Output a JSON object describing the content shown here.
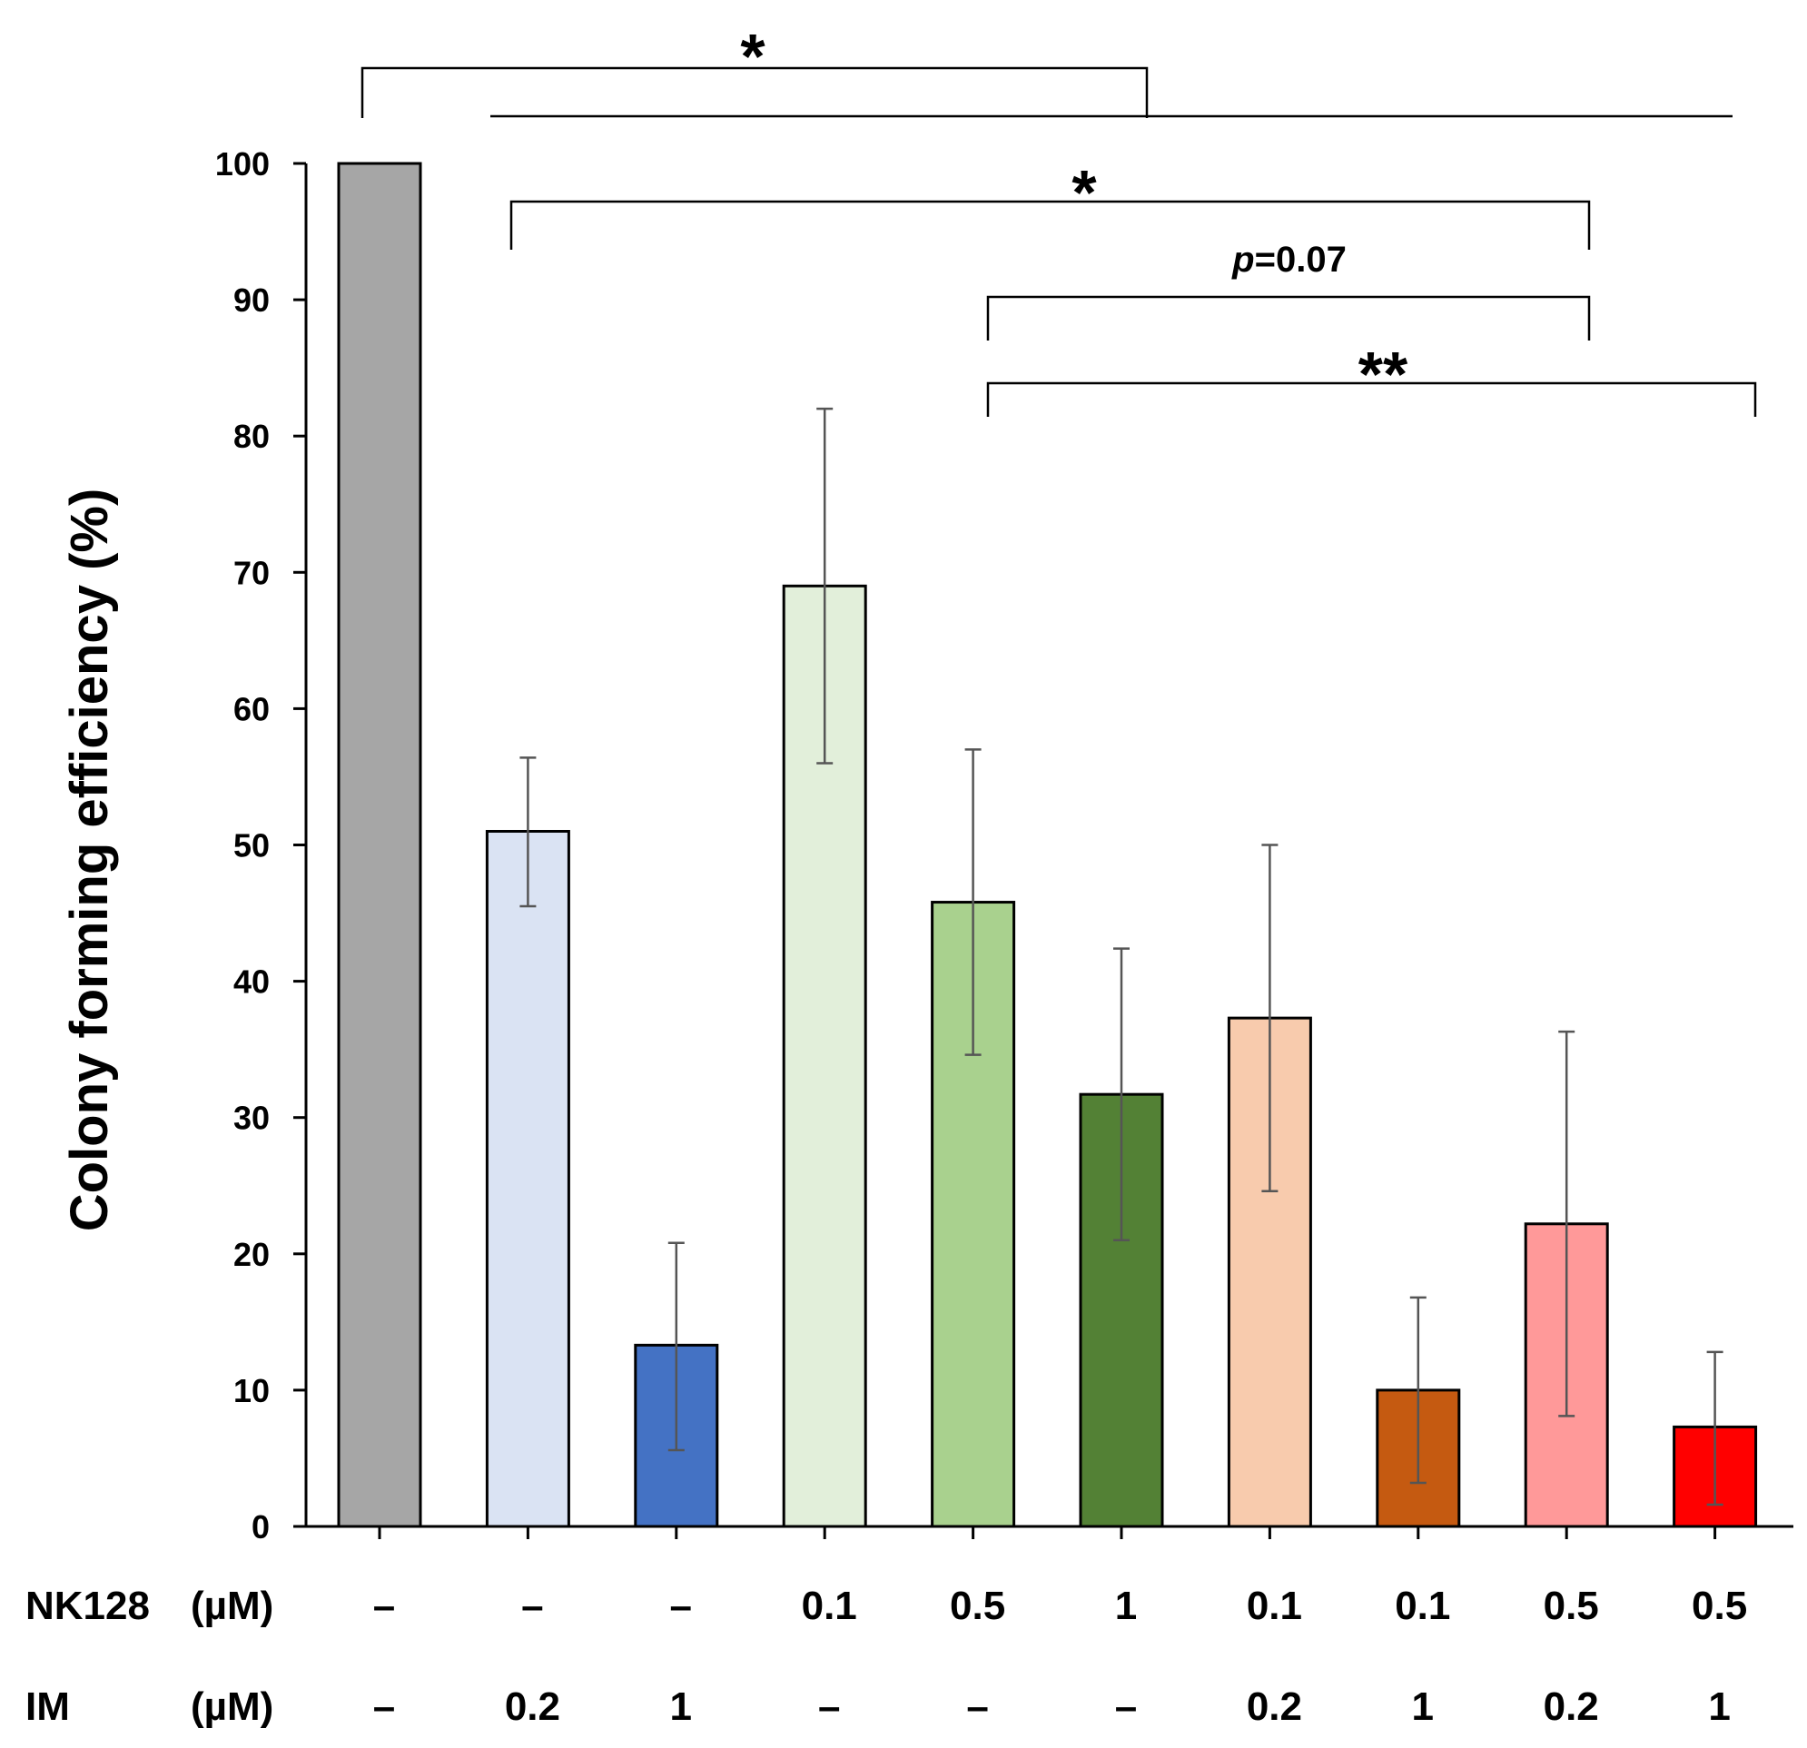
{
  "chart_data": {
    "type": "bar",
    "title": "",
    "xlabel": "",
    "ylabel": "Colony forming efficiency (%)",
    "ylim": [
      0,
      100
    ],
    "yticks": [
      0,
      10,
      20,
      30,
      40,
      50,
      60,
      70,
      80,
      90,
      100
    ],
    "values": [
      100,
      51,
      13.3,
      69,
      45.8,
      31.7,
      37.3,
      10,
      22.2,
      7.3
    ],
    "error_low": [
      100,
      45.5,
      5.6,
      56,
      34.6,
      21,
      24.6,
      3.2,
      8.1,
      1.6
    ],
    "error_high": [
      100,
      56.4,
      20.8,
      82,
      57,
      42.4,
      50,
      16.8,
      36.3,
      12.8
    ],
    "colors": [
      "#a6a6a6",
      "#dae3f3",
      "#4472c4",
      "#e2efda",
      "#a9d18e",
      "#538135",
      "#f8cbad",
      "#c55a11",
      "#ff9999",
      "#ff0000"
    ],
    "row_labels": [
      {
        "name": "NK128",
        "unit": "(µM)"
      },
      {
        "name": "IM",
        "unit": "(µM)"
      }
    ],
    "conditions": {
      "nk128": [
        "–",
        "–",
        "–",
        "0.1",
        "0.5",
        "1",
        "0.1",
        "0.1",
        "0.5",
        "0.5"
      ],
      "im": [
        "–",
        "0.2",
        "1",
        "–",
        "–",
        "–",
        "0.2",
        "1",
        "0.2",
        "1"
      ]
    },
    "significance": [
      {
        "label": "*"
      },
      {
        "label": "*"
      },
      {
        "label_prefix": "p",
        "label": "=0.07"
      },
      {
        "label": "**"
      }
    ]
  }
}
